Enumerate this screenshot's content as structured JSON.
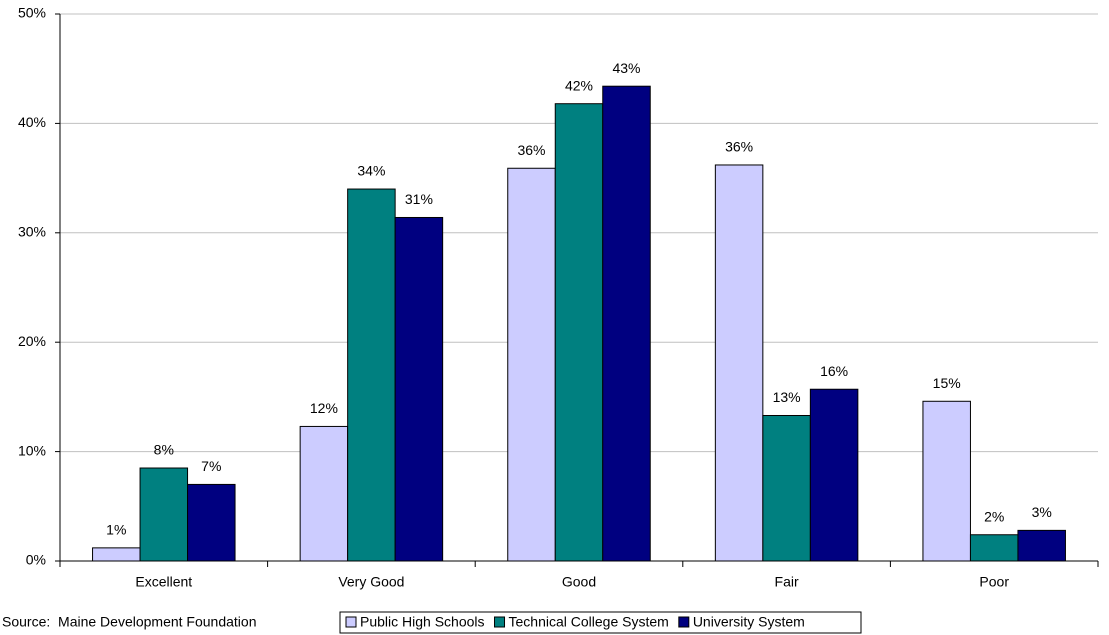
{
  "chart_data": {
    "type": "bar",
    "categories": [
      "Excellent",
      "Very Good",
      "Good",
      "Fair",
      "Poor"
    ],
    "series": [
      {
        "name": "Public High Schools",
        "color": "#ccccff",
        "values": [
          1.2,
          12.3,
          35.9,
          36.2,
          14.6
        ],
        "value_labels": [
          "1%",
          "12%",
          "36%",
          "36%",
          "15%"
        ]
      },
      {
        "name": "Technical College System",
        "color": "#008080",
        "values": [
          8.5,
          34.0,
          41.8,
          13.3,
          2.4
        ],
        "value_labels": [
          "8%",
          "34%",
          "42%",
          "13%",
          "2%"
        ]
      },
      {
        "name": "University System",
        "color": "#000080",
        "values": [
          7.0,
          31.4,
          43.4,
          15.7,
          2.8
        ],
        "value_labels": [
          "7%",
          "31%",
          "43%",
          "16%",
          "3%"
        ]
      }
    ],
    "ylim": [
      0,
      50
    ],
    "yticks": [
      {
        "value": 0,
        "label": "0%"
      },
      {
        "value": 10,
        "label": "10%"
      },
      {
        "value": 20,
        "label": "20%"
      },
      {
        "value": 30,
        "label": "30%"
      },
      {
        "value": 40,
        "label": "40%"
      },
      {
        "value": 50,
        "label": "50%"
      }
    ],
    "grid": true,
    "source": "Source:  Maine Development Foundation"
  }
}
